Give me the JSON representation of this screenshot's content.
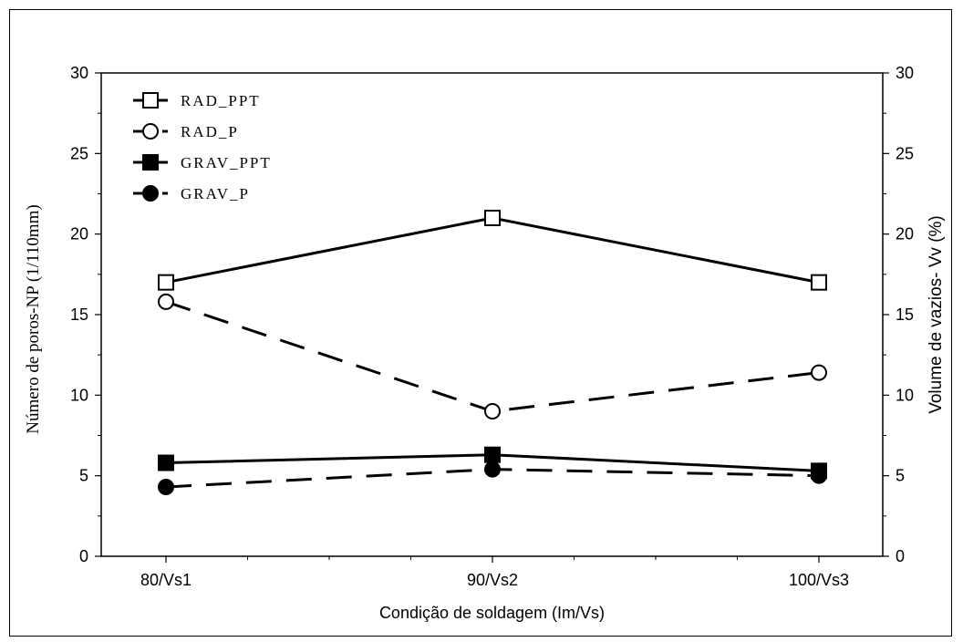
{
  "chart_data": {
    "type": "line",
    "title": "",
    "xlabel": "Condição de soldagem (Im/Vs)",
    "ylabel": "Número de poros-NP (1/110mm)",
    "ylabel_right": "Volume de vazios- Vv (%)",
    "categories": [
      "80/Vs1",
      "90/Vs2",
      "100/Vs3"
    ],
    "ylim": [
      0,
      30
    ],
    "ylim_right": [
      0,
      30
    ],
    "yticks": [
      "0",
      "5",
      "10",
      "15",
      "20",
      "25",
      "30"
    ],
    "yticks_right": [
      "0",
      "5",
      "10",
      "15",
      "20",
      "25",
      "30"
    ],
    "grid": false,
    "legend_position": "top-left",
    "series": [
      {
        "name": "RAD_PPT",
        "values": [
          17,
          21,
          17
        ],
        "marker": "open-square",
        "line": "solid",
        "axis": "left"
      },
      {
        "name": "RAD_P",
        "values": [
          15.8,
          9,
          11.4
        ],
        "marker": "open-circle",
        "line": "dashed",
        "axis": "right"
      },
      {
        "name": "GRAV_PPT",
        "values": [
          5.8,
          6.3,
          5.3
        ],
        "marker": "filled-square",
        "line": "solid",
        "axis": "left"
      },
      {
        "name": "GRAV_P",
        "values": [
          4.3,
          5.4,
          5.0
        ],
        "marker": "filled-circle",
        "line": "dashed",
        "axis": "right"
      }
    ],
    "colors": {
      "line": "#000000",
      "background": "#ffffff"
    }
  }
}
